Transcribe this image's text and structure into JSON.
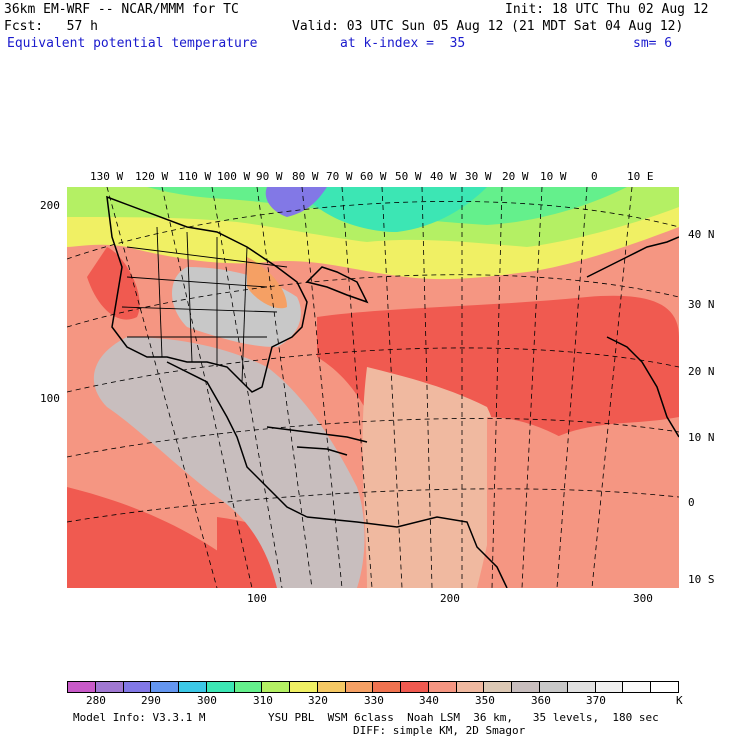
{
  "header": {
    "line1_left": "36km EM-WRF -- NCAR/MMM for TC",
    "line1_right": "Init: 18 UTC Thu 02 Aug 12",
    "line2_left": "Fcst:   57 h",
    "line2_right": "Valid: 03 UTC Sun 05 Aug 12 (21 MDT Sat 04 Aug 12)",
    "field_name": "Equivalent potential temperature",
    "level": "at k-index =  35",
    "smoothing": "sm= 6"
  },
  "map": {
    "top_longitudes": [
      "130 W",
      "120 W",
      "110 W",
      "100 W",
      "90 W",
      "80 W",
      "70 W",
      "60 W",
      "50 W",
      "40 W",
      "30 W",
      "20 W",
      "10 W",
      "0",
      "10 E"
    ],
    "right_latitudes": [
      "40 N",
      "30 N",
      "20 N",
      "10 N",
      "0",
      "10 S"
    ],
    "left_grid_ticks": [
      "200",
      "100"
    ],
    "bottom_grid_ticks": [
      "100",
      "200",
      "300"
    ]
  },
  "colorbar": {
    "colors": [
      "#c85ac8",
      "#a078d2",
      "#8278e6",
      "#6496f0",
      "#3cc8e6",
      "#3ce6b4",
      "#64f08c",
      "#b4f064",
      "#f0f064",
      "#f5c864",
      "#f5a064",
      "#f07350",
      "#f05a50",
      "#f59682",
      "#f0b9a0",
      "#dcc8b4",
      "#c8bebe",
      "#c8c8c8",
      "#e1e1e1",
      "#f0f0f0",
      "#fafafa",
      "#ffffff"
    ],
    "labels": [
      "280",
      "290",
      "300",
      "310",
      "320",
      "330",
      "340",
      "350",
      "360",
      "370"
    ],
    "unit": "K"
  },
  "footer": {
    "line1_left": "Model Info: V3.3.1 M",
    "line1_right": "YSU PBL  WSM 6class  Noah LSM  36 km,   35 levels,  180 sec",
    "line2": "DIFF: simple KM, 2D Smagor"
  }
}
